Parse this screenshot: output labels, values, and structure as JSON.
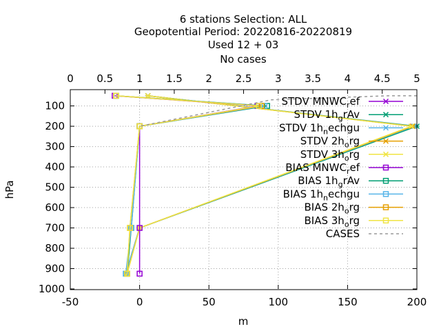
{
  "chart_data": {
    "type": "line",
    "title_lines": [
      "6 stations Selection: ALL",
      "Geopotential  Period: 20220816-20220819",
      "Used  12 + 03",
      "No cases"
    ],
    "xlabel": "m",
    "ylabel": "hPa",
    "xlim": [
      -50,
      200
    ],
    "ylim": [
      1000,
      20
    ],
    "y_reversed": true,
    "x2lim": [
      0,
      5
    ],
    "x_ticks": [
      "-50",
      "0",
      "50",
      "100",
      "150",
      "200"
    ],
    "x2_ticks": [
      "0",
      "0.5",
      "1",
      "1.5",
      "2",
      "2.5",
      "3",
      "3.5",
      "4",
      "4.5",
      "5"
    ],
    "y_ticks": [
      "100",
      "200",
      "300",
      "400",
      "500",
      "600",
      "700",
      "800",
      "900",
      "1000"
    ],
    "grid": true,
    "legend_position": "top-right",
    "series": [
      {
        "name": "STDV MNWC_ref",
        "legend_text": "STDV MNWC",
        "legend_sub": "r",
        "legend_tail": "ef",
        "color": "#9400d3",
        "marker": "x",
        "dash": false,
        "points": [
          [
            6,
            50
          ],
          [
            197,
            200
          ],
          [
            0,
            700
          ],
          [
            -10,
            925
          ]
        ]
      },
      {
        "name": "STDV 1h_grAv",
        "legend_text": "STDV 1h",
        "legend_sub": "g",
        "legend_tail": "rAv",
        "color": "#009e73",
        "marker": "x",
        "dash": false,
        "points": [
          [
            6,
            50
          ],
          [
            200,
            200
          ],
          [
            0,
            700
          ],
          [
            -10,
            925
          ]
        ]
      },
      {
        "name": "STDV 1h_nechgu",
        "legend_text": "STDV 1h",
        "legend_sub": "n",
        "legend_tail": "echgu",
        "color": "#56b4e9",
        "marker": "x",
        "dash": false,
        "points": [
          [
            6,
            50
          ],
          [
            198,
            200
          ],
          [
            0,
            700
          ],
          [
            -10,
            925
          ]
        ]
      },
      {
        "name": "STDV 2h_org",
        "legend_text": "STDV 2h",
        "legend_sub": "o",
        "legend_tail": "rg",
        "color": "#e69f00",
        "marker": "x",
        "dash": false,
        "points": [
          [
            6,
            50
          ],
          [
            197,
            200
          ],
          [
            0,
            700
          ],
          [
            -9,
            925
          ]
        ]
      },
      {
        "name": "STDV 3h_org",
        "legend_text": "STDV 3h",
        "legend_sub": "o",
        "legend_tail": "rg",
        "color": "#f0e442",
        "marker": "x",
        "dash": false,
        "points": [
          [
            6,
            50
          ],
          [
            196,
            200
          ],
          [
            0,
            700
          ],
          [
            -9,
            925
          ]
        ]
      },
      {
        "name": "BIAS MNWC_ref",
        "legend_text": "BIAS MNWC",
        "legend_sub": "r",
        "legend_tail": "ef",
        "color": "#9400d3",
        "marker": "s",
        "dash": false,
        "points": [
          [
            -18,
            50
          ],
          [
            85,
            100
          ],
          [
            0,
            200
          ],
          [
            0,
            700
          ],
          [
            0,
            925
          ]
        ]
      },
      {
        "name": "BIAS 1h_grAv",
        "legend_text": "BIAS 1h",
        "legend_sub": "g",
        "legend_tail": "rAv",
        "color": "#009e73",
        "marker": "s",
        "dash": false,
        "points": [
          [
            -17,
            50
          ],
          [
            92,
            100
          ],
          [
            0,
            200
          ],
          [
            -6,
            700
          ],
          [
            -9,
            925
          ]
        ]
      },
      {
        "name": "BIAS 1h_nechgu",
        "legend_text": "BIAS 1h",
        "legend_sub": "n",
        "legend_tail": "echgu",
        "color": "#56b4e9",
        "marker": "s",
        "dash": false,
        "points": [
          [
            -17,
            50
          ],
          [
            90,
            100
          ],
          [
            0,
            200
          ],
          [
            -6,
            700
          ],
          [
            -10,
            925
          ]
        ]
      },
      {
        "name": "BIAS 2h_org",
        "legend_text": "BIAS 2h",
        "legend_sub": "o",
        "legend_tail": "rg",
        "color": "#e69f00",
        "marker": "s",
        "dash": false,
        "points": [
          [
            -17,
            50
          ],
          [
            88,
            100
          ],
          [
            0,
            200
          ],
          [
            -7,
            700
          ],
          [
            -9,
            925
          ]
        ]
      },
      {
        "name": "BIAS 3h_org",
        "legend_text": "BIAS 3h",
        "legend_sub": "o",
        "legend_tail": "rg",
        "color": "#f0e442",
        "marker": "s",
        "dash": false,
        "points": [
          [
            -17,
            50
          ],
          [
            86,
            100
          ],
          [
            0,
            200
          ],
          [
            -7,
            700
          ],
          [
            -9,
            925
          ]
        ]
      },
      {
        "name": "CASES",
        "legend_text": "CASES",
        "legend_sub": "",
        "legend_tail": "",
        "color": "#999999",
        "marker": "none",
        "dash": true,
        "axis": "x2",
        "points": [
          [
            5,
            50
          ],
          [
            4.6,
            50
          ],
          [
            2.9,
            70
          ],
          [
            1.0,
            200
          ]
        ]
      }
    ]
  }
}
